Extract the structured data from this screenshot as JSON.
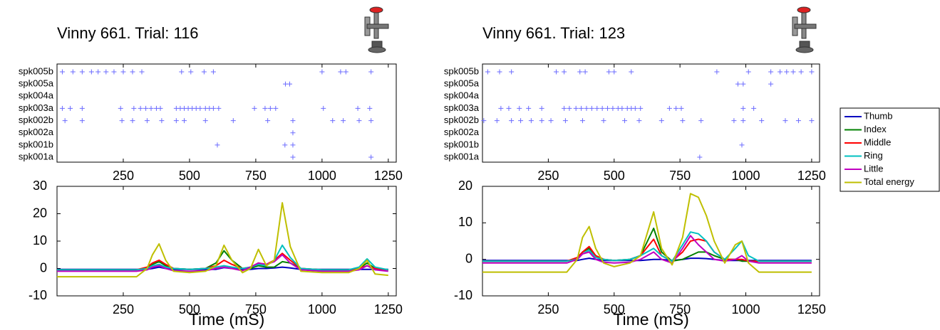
{
  "chart_data": [
    {
      "type": "raster",
      "title": "Vinny 661. Trial: 116",
      "color": "#6b6bff",
      "categories": [
        "spk005b",
        "spk005a",
        "spk004a",
        "spk003a",
        "spk002b",
        "spk002a",
        "spk001b",
        "spk001a"
      ],
      "spike_times": [
        [
          20,
          60,
          95,
          130,
          155,
          185,
          215,
          250,
          285,
          320,
          470,
          505,
          555,
          590,
          1000,
          1070,
          1090,
          1185
        ],
        [
          862,
          878
        ],
        [],
        [
          20,
          50,
          95,
          240,
          290,
          315,
          335,
          355,
          375,
          390,
          450,
          465,
          480,
          495,
          510,
          525,
          540,
          560,
          575,
          590,
          610,
          745,
          785,
          805,
          825,
          1005,
          1135,
          1180
        ],
        [
          30,
          95,
          245,
          285,
          340,
          395,
          450,
          480,
          560,
          665,
          795,
          890,
          1040,
          1080,
          1140,
          1185
        ],
        [
          890
        ],
        [
          605,
          860,
          890
        ],
        [
          890,
          1185
        ]
      ],
      "xlim": [
        0,
        1280
      ],
      "xticks": [
        250,
        500,
        750,
        1000,
        1250
      ]
    },
    {
      "type": "line",
      "xlabel": "Time (mS)",
      "x": [
        0,
        300,
        340,
        360,
        385,
        410,
        440,
        500,
        560,
        600,
        630,
        660,
        700,
        730,
        760,
        790,
        820,
        850,
        880,
        920,
        1000,
        1100,
        1140,
        1170,
        1200,
        1250
      ],
      "series": [
        {
          "color": "#0000c0",
          "values": [
            -0.3,
            -0.3,
            -0.3,
            0,
            0.5,
            0,
            -0.3,
            -0.3,
            -0.3,
            -0.3,
            0.3,
            0,
            -0.3,
            -0.3,
            0,
            0,
            0.2,
            0.5,
            0.2,
            -0.3,
            -0.3,
            -0.3,
            -0.3,
            -0.3,
            -0.3,
            -0.3
          ]
        },
        {
          "color": "#008000",
          "values": [
            -0.5,
            -0.5,
            0,
            1.5,
            2.5,
            1,
            0,
            -0.3,
            0,
            2,
            6.5,
            3,
            0,
            0,
            1,
            0.5,
            0.5,
            2.5,
            2,
            0,
            -0.5,
            -0.5,
            0,
            2,
            0,
            -0.5
          ]
        },
        {
          "color": "#ff0000",
          "values": [
            -0.5,
            -0.5,
            0.5,
            2,
            3,
            1.5,
            0,
            -0.3,
            0,
            1,
            3,
            1.5,
            0,
            0.5,
            2,
            1.5,
            3,
            5.5,
            3,
            0,
            -0.5,
            -0.5,
            0,
            1,
            0,
            -0.5
          ]
        },
        {
          "color": "#00c0c0",
          "values": [
            -0.5,
            -0.5,
            0,
            1,
            1.5,
            0.5,
            0,
            -0.3,
            0,
            0.5,
            1,
            0.5,
            0,
            0.5,
            1.5,
            1,
            3,
            8.5,
            4,
            0,
            -0.5,
            -0.5,
            0.5,
            3.5,
            0.5,
            -0.5
          ]
        },
        {
          "color": "#c000c0",
          "values": [
            -1,
            -1,
            -0.5,
            0.5,
            1,
            0,
            -0.8,
            -1,
            -0.8,
            0,
            0.5,
            0,
            -0.8,
            0.5,
            2,
            1.5,
            2.5,
            5,
            2,
            -0.5,
            -1,
            -1,
            -0.5,
            1,
            -0.5,
            -1
          ]
        },
        {
          "color": "#bfbf00",
          "values": [
            -3,
            -3,
            0,
            5,
            9,
            3,
            -1,
            -1.5,
            -1,
            1,
            8.5,
            3,
            -1.5,
            0,
            7,
            1,
            3,
            24,
            8,
            -1,
            -1.5,
            -1.5,
            0,
            3,
            -2,
            -2.5
          ]
        }
      ],
      "xlim": [
        0,
        1280
      ],
      "xticks": [
        250,
        500,
        750,
        1000,
        1250
      ],
      "ylim": [
        -10,
        30
      ],
      "yticks": [
        -10,
        0,
        10,
        20,
        30
      ]
    },
    {
      "type": "raster",
      "title": "Vinny 661. Trial: 123",
      "color": "#6b6bff",
      "categories": [
        "spk005b",
        "spk005a",
        "spk004a",
        "spk003a",
        "spk002b",
        "spk002a",
        "spk001b",
        "spk001a"
      ],
      "spike_times": [
        [
          20,
          65,
          110,
          280,
          310,
          370,
          390,
          480,
          500,
          565,
          890,
          1010,
          1095,
          1130,
          1155,
          1180,
          1210,
          1250
        ],
        [
          970,
          990,
          1095
        ],
        [],
        [
          70,
          100,
          140,
          175,
          225,
          310,
          330,
          355,
          375,
          395,
          415,
          435,
          455,
          475,
          495,
          515,
          530,
          550,
          565,
          580,
          600,
          710,
          735,
          755,
          990,
          1030
        ],
        [
          5,
          55,
          110,
          145,
          185,
          225,
          260,
          315,
          380,
          460,
          540,
          595,
          680,
          760,
          830,
          955,
          990,
          1060,
          1150,
          1200,
          1250
        ],
        [],
        [
          985
        ],
        [
          825
        ]
      ],
      "xlim": [
        0,
        1280
      ],
      "xticks": [
        250,
        500,
        750,
        1000,
        1250
      ]
    },
    {
      "type": "line",
      "xlabel": "Time (mS)",
      "legend": "outside-right",
      "x": [
        0,
        320,
        360,
        380,
        405,
        430,
        460,
        500,
        560,
        600,
        650,
        680,
        720,
        760,
        790,
        820,
        850,
        880,
        920,
        960,
        985,
        1010,
        1050,
        1100,
        1250
      ],
      "series": [
        {
          "name": "Thumb",
          "color": "#0000c0",
          "values": [
            -0.3,
            -0.3,
            -0.3,
            0,
            0.3,
            0,
            -0.3,
            -0.3,
            -0.3,
            -0.3,
            0,
            0,
            -0.3,
            0,
            0.3,
            0.3,
            0.2,
            0,
            -0.3,
            -0.3,
            -0.3,
            -0.3,
            -0.3,
            -0.3,
            -0.3
          ]
        },
        {
          "name": "Index",
          "color": "#008000",
          "values": [
            -0.5,
            -0.5,
            0,
            2,
            3,
            1,
            0,
            -0.3,
            0,
            1,
            8.5,
            2,
            -0.5,
            0,
            1,
            2,
            2,
            1,
            0,
            0,
            -0.5,
            -0.5,
            -0.5,
            -0.5,
            -0.5
          ]
        },
        {
          "name": "Middle",
          "color": "#ff0000",
          "values": [
            -0.5,
            -0.5,
            0.5,
            2,
            3.5,
            1,
            0,
            -0.3,
            0,
            1,
            5.5,
            1,
            -0.5,
            2,
            5,
            5.5,
            5,
            2,
            0,
            0,
            0,
            -0.5,
            -0.5,
            -0.5,
            -0.5
          ]
        },
        {
          "name": "Ring",
          "color": "#00c0c0",
          "values": [
            -0.5,
            -0.5,
            0,
            1.5,
            2.5,
            0.5,
            0,
            -0.3,
            0,
            1,
            3,
            1,
            -0.5,
            4,
            7.5,
            7,
            5,
            2,
            0,
            3,
            5,
            1,
            -0.5,
            -0.5,
            -0.5
          ]
        },
        {
          "name": "Little",
          "color": "#c000c0",
          "values": [
            -1,
            -1,
            0,
            1.5,
            2,
            0,
            -0.8,
            -1,
            -0.8,
            0,
            2,
            0,
            -1,
            3,
            6.5,
            4,
            2,
            0,
            -0.5,
            0,
            1,
            -0.5,
            -1,
            -1,
            -1
          ]
        },
        {
          "name": "Total energy",
          "color": "#bfbf00",
          "values": [
            -3.5,
            -3.5,
            0,
            6,
            9,
            3,
            -1,
            -2,
            -1,
            1,
            13,
            3,
            -1.5,
            6,
            18,
            17,
            12,
            5,
            -1,
            4,
            5,
            -1,
            -3.5,
            -3.5,
            -3.5
          ]
        }
      ],
      "xlim": [
        0,
        1280
      ],
      "xticks": [
        250,
        500,
        750,
        1000,
        1250
      ],
      "ylim": [
        -10,
        20
      ],
      "yticks": [
        -10,
        0,
        10,
        20
      ]
    }
  ]
}
